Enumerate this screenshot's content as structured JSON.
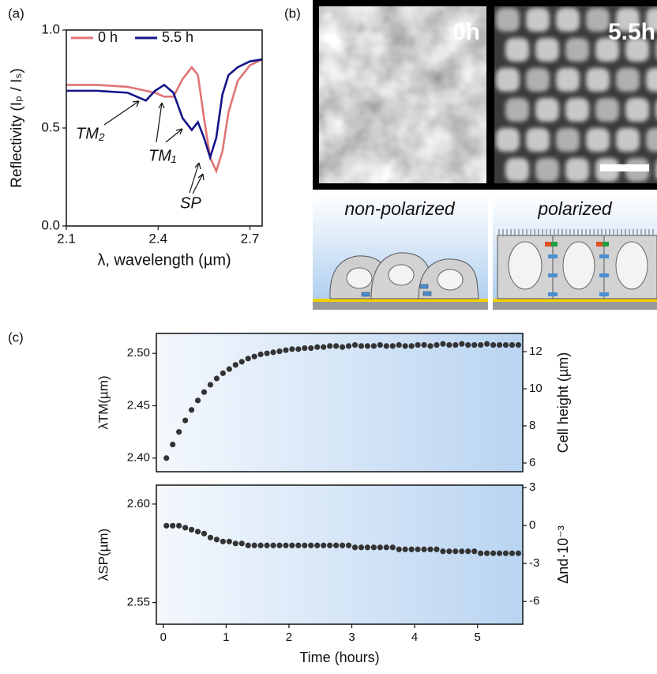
{
  "chart_data": [
    {
      "type": "line",
      "panel_label": "(a)",
      "xlabel": "λ, wavelength (µm)",
      "ylabel": "Reflectivity (Iₚ / Iₛ)",
      "x": [
        2.1,
        2.2,
        2.3,
        2.33,
        2.36,
        2.39,
        2.42,
        2.45,
        2.48,
        2.51,
        2.53,
        2.55,
        2.57,
        2.59,
        2.61,
        2.63,
        2.66,
        2.7,
        2.74
      ],
      "series": [
        {
          "name": "0 h",
          "color": "#e07575",
          "values": [
            0.72,
            0.72,
            0.71,
            0.7,
            0.69,
            0.68,
            0.66,
            0.66,
            0.75,
            0.81,
            0.77,
            0.55,
            0.35,
            0.28,
            0.38,
            0.58,
            0.74,
            0.82,
            0.85
          ]
        },
        {
          "name": "5.5 h",
          "color": "#14148a",
          "values": [
            0.69,
            0.69,
            0.68,
            0.66,
            0.64,
            0.69,
            0.72,
            0.68,
            0.55,
            0.49,
            0.53,
            0.45,
            0.35,
            0.45,
            0.67,
            0.77,
            0.81,
            0.84,
            0.85
          ]
        }
      ],
      "xlim": [
        2.1,
        2.74
      ],
      "xticks": [
        2.1,
        2.4,
        2.7
      ],
      "ylim": [
        0,
        1
      ],
      "yticks": [
        {
          "value": 0,
          "label": "0.0"
        },
        0.5,
        {
          "value": 1,
          "label": "1.0"
        }
      ],
      "legend": "upper left",
      "annotations": [
        "TM₂",
        "TM₁",
        "SP"
      ]
    },
    {
      "type": "scatter",
      "panel_label": "(c)",
      "ylabel": "λTM(µm)",
      "y2label": "Cell height (µm)",
      "color": "#333333",
      "x": [
        0.05,
        0.15,
        0.25,
        0.35,
        0.45,
        0.55,
        0.65,
        0.75,
        0.85,
        0.95,
        1.05,
        1.15,
        1.25,
        1.35,
        1.45,
        1.55,
        1.65,
        1.75,
        1.85,
        1.95,
        2.05,
        2.15,
        2.25,
        2.35,
        2.45,
        2.55,
        2.65,
        2.75,
        2.85,
        2.95,
        3.05,
        3.15,
        3.25,
        3.35,
        3.45,
        3.55,
        3.65,
        3.75,
        3.85,
        3.95,
        4.05,
        4.15,
        4.25,
        4.35,
        4.45,
        4.55,
        4.65,
        4.75,
        4.85,
        4.95,
        5.05,
        5.15,
        5.25,
        5.35,
        5.45,
        5.55,
        5.65
      ],
      "values": [
        2.4,
        2.413,
        2.425,
        2.436,
        2.446,
        2.455,
        2.463,
        2.47,
        2.476,
        2.481,
        2.485,
        2.489,
        2.492,
        2.495,
        2.497,
        2.499,
        2.5,
        2.501,
        2.502,
        2.503,
        2.504,
        2.504,
        2.505,
        2.505,
        2.506,
        2.506,
        2.507,
        2.507,
        2.506,
        2.507,
        2.508,
        2.507,
        2.507,
        2.507,
        2.508,
        2.507,
        2.507,
        2.508,
        2.507,
        2.507,
        2.508,
        2.508,
        2.507,
        2.508,
        2.509,
        2.508,
        2.508,
        2.509,
        2.508,
        2.508,
        2.508,
        2.509,
        2.508,
        2.508,
        2.508,
        2.508,
        2.508
      ],
      "xlim": [
        -0.11,
        5.72
      ],
      "ylim": [
        2.387,
        2.519
      ],
      "yticks": [
        {
          "value": 2.4,
          "label": "2.40"
        },
        2.45,
        {
          "value": 2.5,
          "label": "2.50"
        }
      ],
      "y2lim": [
        5.53,
        12.98
      ],
      "y2ticks": [
        6,
        8,
        10,
        12
      ]
    },
    {
      "type": "scatter",
      "xlabel": "Time (hours)",
      "ylabel": "λSP(µm)",
      "y2label": "Δnd·10⁻³",
      "color": "#333333",
      "x": [
        0.05,
        0.15,
        0.25,
        0.35,
        0.45,
        0.55,
        0.65,
        0.75,
        0.85,
        0.95,
        1.05,
        1.15,
        1.25,
        1.35,
        1.45,
        1.55,
        1.65,
        1.75,
        1.85,
        1.95,
        2.05,
        2.15,
        2.25,
        2.35,
        2.45,
        2.55,
        2.65,
        2.75,
        2.85,
        2.95,
        3.05,
        3.15,
        3.25,
        3.35,
        3.45,
        3.55,
        3.65,
        3.75,
        3.85,
        3.95,
        4.05,
        4.15,
        4.25,
        4.35,
        4.45,
        4.55,
        4.65,
        4.75,
        4.85,
        4.95,
        5.05,
        5.15,
        5.25,
        5.35,
        5.45,
        5.55,
        5.65
      ],
      "values": [
        2.589,
        2.589,
        2.589,
        2.588,
        2.587,
        2.586,
        2.585,
        2.583,
        2.582,
        2.581,
        2.581,
        2.58,
        2.58,
        2.579,
        2.579,
        2.579,
        2.579,
        2.579,
        2.579,
        2.579,
        2.579,
        2.579,
        2.579,
        2.579,
        2.579,
        2.579,
        2.579,
        2.579,
        2.579,
        2.579,
        2.578,
        2.578,
        2.578,
        2.578,
        2.578,
        2.578,
        2.578,
        2.577,
        2.577,
        2.577,
        2.577,
        2.577,
        2.577,
        2.577,
        2.576,
        2.576,
        2.576,
        2.576,
        2.576,
        2.576,
        2.575,
        2.575,
        2.575,
        2.575,
        2.575,
        2.575,
        2.575
      ],
      "xlim": [
        -0.11,
        5.72
      ],
      "xticks": [
        0,
        1,
        2,
        3,
        4,
        5
      ],
      "ylim": [
        2.539,
        2.6096
      ],
      "yticks": [
        2.55,
        {
          "value": 2.6,
          "label": "2.60"
        }
      ],
      "y2lim": [
        -7.8,
        3.19
      ],
      "y2ticks": [
        3,
        0,
        -3,
        -6
      ]
    }
  ],
  "panel_b": {
    "label": "(b)",
    "images": [
      "0h",
      "5.5h"
    ],
    "schematics": [
      "non-polarized",
      "polarized"
    ]
  }
}
